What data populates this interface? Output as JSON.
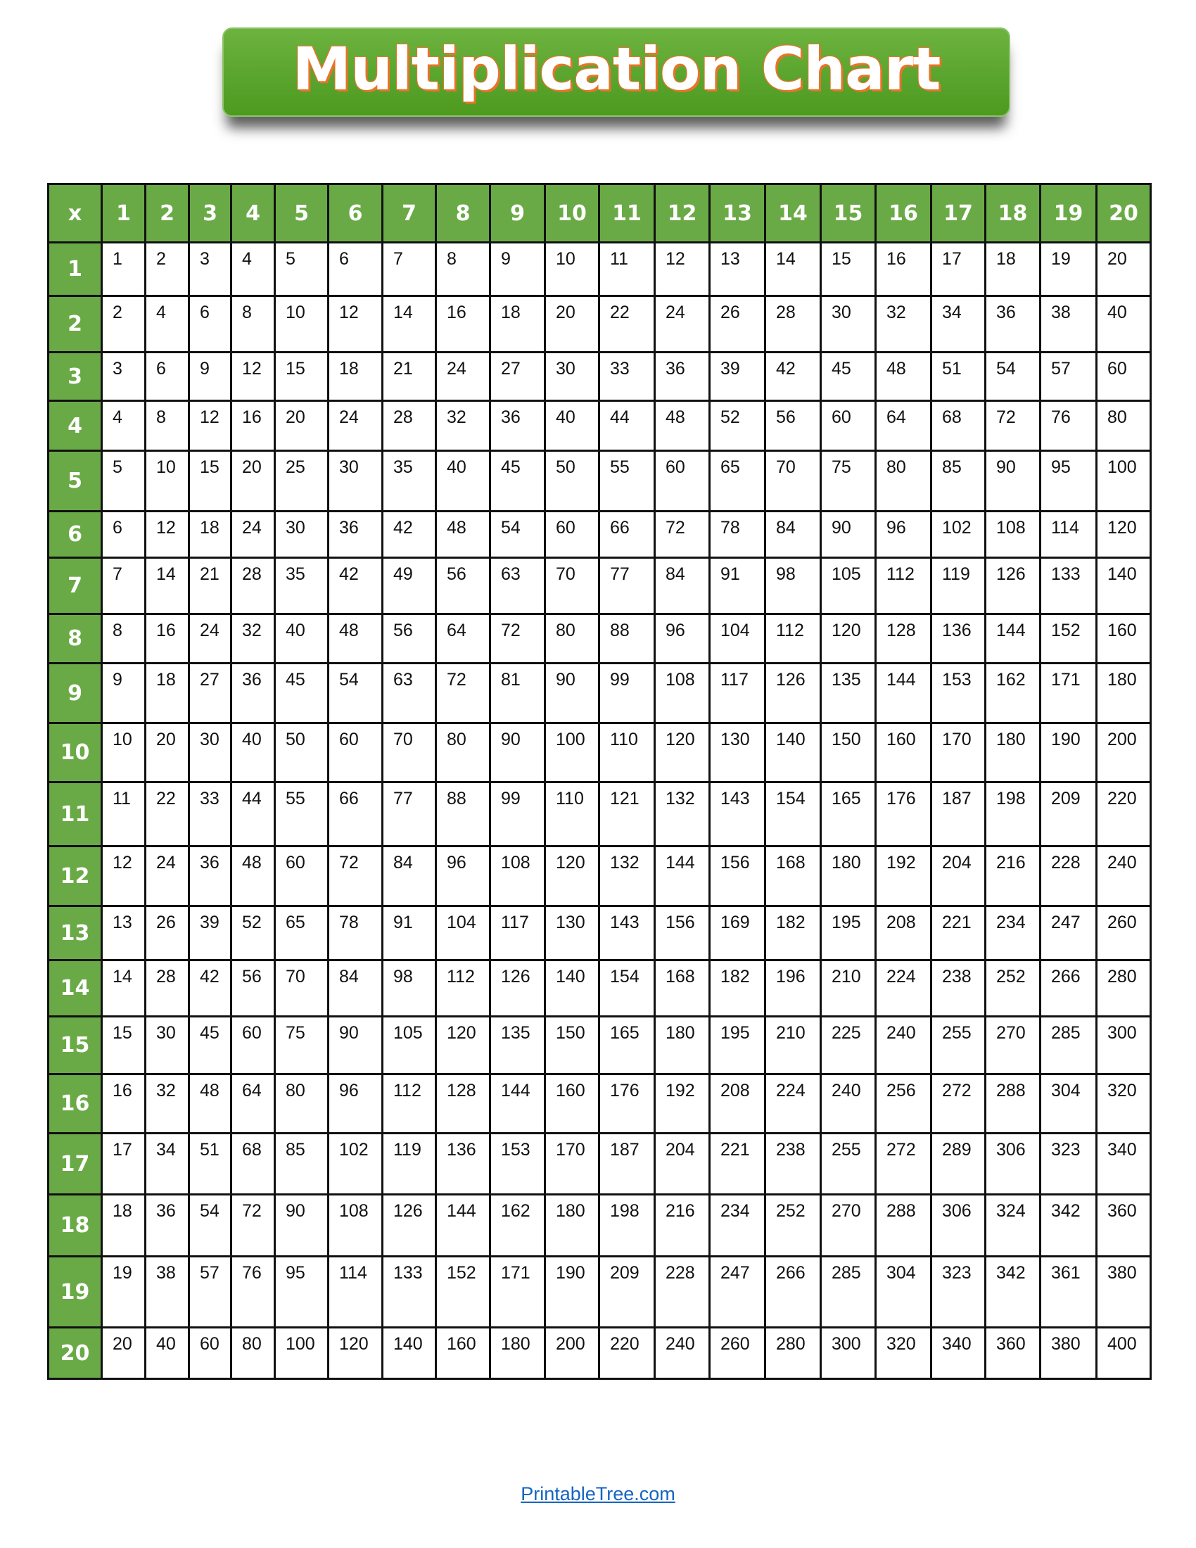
{
  "title": "Multiplication Chart",
  "colors": {
    "header_green": "#6aaa46",
    "title_green": "#5aa52e",
    "title_outline": "#e8742a",
    "link": "#1565c0"
  },
  "table": {
    "corner_label": "x",
    "column_headers": [
      "1",
      "2",
      "3",
      "4",
      "5",
      "6",
      "7",
      "8",
      "9",
      "10",
      "11",
      "12",
      "13",
      "14",
      "15",
      "16",
      "17",
      "18",
      "19",
      "20"
    ],
    "rows": [
      {
        "header": "1",
        "values": [
          "1",
          "2",
          "3",
          "4",
          "5",
          "6",
          "7",
          "8",
          "9",
          "10",
          "11",
          "12",
          "13",
          "14",
          "15",
          "16",
          "17",
          "18",
          "19",
          "20"
        ]
      },
      {
        "header": "2",
        "values": [
          "2",
          "4",
          "6",
          "8",
          "10",
          "12",
          "14",
          "16",
          "18",
          "20",
          "22",
          "24",
          "26",
          "28",
          "30",
          "32",
          "34",
          "36",
          "38",
          "40"
        ]
      },
      {
        "header": "3",
        "values": [
          "3",
          "6",
          "9",
          "12",
          "15",
          "18",
          "21",
          "24",
          "27",
          "30",
          "33",
          "36",
          "39",
          "42",
          "45",
          "48",
          "51",
          "54",
          "57",
          "60"
        ]
      },
      {
        "header": "4",
        "values": [
          "4",
          "8",
          "12",
          "16",
          "20",
          "24",
          "28",
          "32",
          "36",
          "40",
          "44",
          "48",
          "52",
          "56",
          "60",
          "64",
          "68",
          "72",
          "76",
          "80"
        ]
      },
      {
        "header": "5",
        "values": [
          "5",
          "10",
          "15",
          "20",
          "25",
          "30",
          "35",
          "40",
          "45",
          "50",
          "55",
          "60",
          "65",
          "70",
          "75",
          "80",
          "85",
          "90",
          "95",
          "100"
        ]
      },
      {
        "header": "6",
        "values": [
          "6",
          "12",
          "18",
          "24",
          "30",
          "36",
          "42",
          "48",
          "54",
          "60",
          "66",
          "72",
          "78",
          "84",
          "90",
          "96",
          "102",
          "108",
          "114",
          "120"
        ]
      },
      {
        "header": "7",
        "values": [
          "7",
          "14",
          "21",
          "28",
          "35",
          "42",
          "49",
          "56",
          "63",
          "70",
          "77",
          "84",
          "91",
          "98",
          "105",
          "112",
          "119",
          "126",
          "133",
          "140"
        ]
      },
      {
        "header": "8",
        "values": [
          "8",
          "16",
          "24",
          "32",
          "40",
          "48",
          "56",
          "64",
          "72",
          "80",
          "88",
          "96",
          "104",
          "112",
          "120",
          "128",
          "136",
          "144",
          "152",
          "160"
        ]
      },
      {
        "header": "9",
        "values": [
          "9",
          "18",
          "27",
          "36",
          "45",
          "54",
          "63",
          "72",
          "81",
          "90",
          "99",
          "108",
          "117",
          "126",
          "135",
          "144",
          "153",
          "162",
          "171",
          "180"
        ]
      },
      {
        "header": "10",
        "values": [
          "10",
          "20",
          "30",
          "40",
          "50",
          "60",
          "70",
          "80",
          "90",
          "100",
          "110",
          "120",
          "130",
          "140",
          "150",
          "160",
          "170",
          "180",
          "190",
          "200"
        ]
      },
      {
        "header": "11",
        "values": [
          "11",
          "22",
          "33",
          "44",
          "55",
          "66",
          "77",
          "88",
          "99",
          "110",
          "121",
          "132",
          "143",
          "154",
          "165",
          "176",
          "187",
          "198",
          "209",
          "220"
        ]
      },
      {
        "header": "12",
        "values": [
          "12",
          "24",
          "36",
          "48",
          "60",
          "72",
          "84",
          "96",
          "108",
          "120",
          "132",
          "144",
          "156",
          "168",
          "180",
          "192",
          "204",
          "216",
          "228",
          "240"
        ]
      },
      {
        "header": "13",
        "values": [
          "13",
          "26",
          "39",
          "52",
          "65",
          "78",
          "91",
          "104",
          "117",
          "130",
          "143",
          "156",
          "169",
          "182",
          "195",
          "208",
          "221",
          "234",
          "247",
          "260"
        ]
      },
      {
        "header": "14",
        "values": [
          "14",
          "28",
          "42",
          "56",
          "70",
          "84",
          "98",
          "112",
          "126",
          "140",
          "154",
          "168",
          "182",
          "196",
          "210",
          "224",
          "238",
          "252",
          "266",
          "280"
        ]
      },
      {
        "header": "15",
        "values": [
          "15",
          "30",
          "45",
          "60",
          "75",
          "90",
          "105",
          "120",
          "135",
          "150",
          "165",
          "180",
          "195",
          "210",
          "225",
          "240",
          "255",
          "270",
          "285",
          "300"
        ]
      },
      {
        "header": "16",
        "values": [
          "16",
          "32",
          "48",
          "64",
          "80",
          "96",
          "112",
          "128",
          "144",
          "160",
          "176",
          "192",
          "208",
          "224",
          "240",
          "256",
          "272",
          "288",
          "304",
          "320"
        ]
      },
      {
        "header": "17",
        "values": [
          "17",
          "34",
          "51",
          "68",
          "85",
          "102",
          "119",
          "136",
          "153",
          "170",
          "187",
          "204",
          "221",
          "238",
          "255",
          "272",
          "289",
          "306",
          "323",
          "340"
        ]
      },
      {
        "header": "18",
        "values": [
          "18",
          "36",
          "54",
          "72",
          "90",
          "108",
          "126",
          "144",
          "162",
          "180",
          "198",
          "216",
          "234",
          "252",
          "270",
          "288",
          "306",
          "324",
          "342",
          "360"
        ]
      },
      {
        "header": "19",
        "values": [
          "19",
          "38",
          "57",
          "76",
          "95",
          "114",
          "133",
          "152",
          "171",
          "190",
          "209",
          "228",
          "247",
          "266",
          "285",
          "304",
          "323",
          "342",
          "361",
          "380"
        ]
      },
      {
        "header": "20",
        "values": [
          "20",
          "40",
          "60",
          "80",
          "100",
          "120",
          "140",
          "160",
          "180",
          "200",
          "220",
          "240",
          "260",
          "280",
          "300",
          "320",
          "340",
          "360",
          "380",
          "400"
        ]
      }
    ]
  },
  "footer": {
    "link_text": "PrintableTree.com"
  }
}
